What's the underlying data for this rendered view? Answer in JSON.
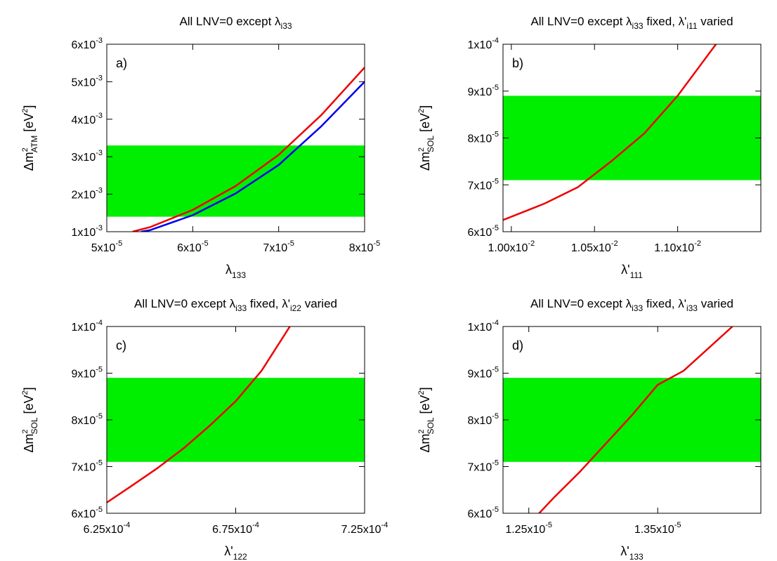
{
  "chart_data": [
    {
      "type": "line",
      "panel_label": "a)",
      "title": {
        "main": "All LNV=0 except λ",
        "sub": "i33",
        "tail": ""
      },
      "xlabel": {
        "main": "λ",
        "sub": "133",
        "sup": ""
      },
      "ylabel": {
        "pre": "Δm",
        "sup": "2",
        "sub": "ATM",
        "post": " [eV",
        "unit_sup": "2",
        "end": "]"
      },
      "xlim": [
        5e-05,
        8e-05
      ],
      "ylim": [
        0.001,
        0.006
      ],
      "xticks": [
        {
          "value": 5e-05,
          "mant": "5x10",
          "exp": "-5"
        },
        {
          "value": 6e-05,
          "mant": "6x10",
          "exp": "-5"
        },
        {
          "value": 7e-05,
          "mant": "7x10",
          "exp": "-5"
        },
        {
          "value": 8e-05,
          "mant": "8x10",
          "exp": "-5"
        }
      ],
      "yticks": [
        {
          "value": 0.001,
          "mant": "1x10",
          "exp": "-3"
        },
        {
          "value": 0.002,
          "mant": "2x10",
          "exp": "-3"
        },
        {
          "value": 0.003,
          "mant": "3x10",
          "exp": "-3"
        },
        {
          "value": 0.004,
          "mant": "4x10",
          "exp": "-3"
        },
        {
          "value": 0.005,
          "mant": "5x10",
          "exp": "-3"
        },
        {
          "value": 0.006,
          "mant": "6x10",
          "exp": "-3"
        }
      ],
      "band": {
        "y0": 0.0014,
        "y1": 0.0033,
        "color": "#00ee00"
      },
      "series": [
        {
          "color": "#0000ee",
          "x": [
            5.4e-05,
            5.5e-05,
            6e-05,
            6.5e-05,
            7e-05,
            7.5e-05,
            8e-05
          ],
          "y": [
            0.001,
            0.00104,
            0.00144,
            0.00202,
            0.00278,
            0.00382,
            0.005
          ]
        },
        {
          "color": "#ee0000",
          "x": [
            5.3e-05,
            5.5e-05,
            6e-05,
            6.5e-05,
            7e-05,
            7.5e-05,
            8e-05
          ],
          "y": [
            0.001,
            0.00112,
            0.00158,
            0.00222,
            0.00305,
            0.00412,
            0.00538
          ]
        }
      ],
      "grid": false
    },
    {
      "type": "line",
      "panel_label": "b)",
      "title": {
        "main": "All LNV=0 except λ",
        "sub": "i33",
        "tail": " fixed, λ'",
        "sub2": "i11",
        "tail2": " varied"
      },
      "xlabel": {
        "main": "λ'",
        "sub": "111",
        "sup": ""
      },
      "ylabel": {
        "pre": "Δm",
        "sup": "2",
        "sub": "SOL",
        "post": " [eV",
        "unit_sup": "2",
        "end": "]"
      },
      "xlim": [
        0.00995,
        0.0115
      ],
      "ylim": [
        6e-05,
        0.0001
      ],
      "xticks": [
        {
          "value": 0.01,
          "mant": "1.00x10",
          "exp": "-2"
        },
        {
          "value": 0.0105,
          "mant": "1.05x10",
          "exp": "-2"
        },
        {
          "value": 0.011,
          "mant": "1.10x10",
          "exp": "-2"
        }
      ],
      "yticks": [
        {
          "value": 6e-05,
          "mant": "6x10",
          "exp": "-5"
        },
        {
          "value": 7e-05,
          "mant": "7x10",
          "exp": "-5"
        },
        {
          "value": 8e-05,
          "mant": "8x10",
          "exp": "-5"
        },
        {
          "value": 9e-05,
          "mant": "9x10",
          "exp": "-5"
        },
        {
          "value": 0.0001,
          "mant": "1x10",
          "exp": "-4"
        }
      ],
      "band": {
        "y0": 7.1e-05,
        "y1": 8.9e-05,
        "color": "#00ee00"
      },
      "series": [
        {
          "color": "#ee0000",
          "x": [
            0.00995,
            0.0102,
            0.0104,
            0.0106,
            0.0108,
            0.011,
            0.01123
          ],
          "y": [
            6.25e-05,
            6.6e-05,
            6.95e-05,
            7.5e-05,
            8.1e-05,
            8.9e-05,
            0.0001
          ]
        }
      ],
      "grid": false
    },
    {
      "type": "line",
      "panel_label": "c)",
      "title": {
        "main": "All LNV=0 except λ",
        "sub": "i33",
        "tail": " fixed, λ'",
        "sub2": "i22",
        "tail2": " varied"
      },
      "xlabel": {
        "main": "λ'",
        "sub": "122",
        "sup": ""
      },
      "ylabel": {
        "pre": "Δm",
        "sup": "2",
        "sub": "SOL",
        "post": " [eV",
        "unit_sup": "2",
        "end": "]"
      },
      "xlim": [
        0.000625,
        0.000725
      ],
      "ylim": [
        6e-05,
        0.0001
      ],
      "xticks": [
        {
          "value": 0.000625,
          "mant": "6.25x10",
          "exp": "-4"
        },
        {
          "value": 0.000675,
          "mant": "6.75x10",
          "exp": "-4"
        },
        {
          "value": 0.000725,
          "mant": "7.25x10",
          "exp": "-4"
        }
      ],
      "yticks": [
        {
          "value": 6e-05,
          "mant": "6x10",
          "exp": "-5"
        },
        {
          "value": 7e-05,
          "mant": "7x10",
          "exp": "-5"
        },
        {
          "value": 8e-05,
          "mant": "8x10",
          "exp": "-5"
        },
        {
          "value": 9e-05,
          "mant": "9x10",
          "exp": "-5"
        },
        {
          "value": 0.0001,
          "mant": "1x10",
          "exp": "-4"
        }
      ],
      "band": {
        "y0": 7.1e-05,
        "y1": 8.9e-05,
        "color": "#00ee00"
      },
      "series": [
        {
          "color": "#ee0000",
          "x": [
            0.000625,
            0.000635,
            0.000645,
            0.000655,
            0.000665,
            0.000675,
            0.000685,
            0.000696
          ],
          "y": [
            6.23e-05,
            6.6e-05,
            6.98e-05,
            7.4e-05,
            7.88e-05,
            8.4e-05,
            9.05e-05,
            0.0001
          ]
        }
      ],
      "grid": false
    },
    {
      "type": "line",
      "panel_label": "d)",
      "title": {
        "main": "All LNV=0 except  λ",
        "sub": "i33",
        "tail": " fixed, λ'",
        "sub2": "i33",
        "tail2": " varied"
      },
      "xlabel": {
        "main": "λ'",
        "sub": "133",
        "sup": ""
      },
      "ylabel": {
        "pre": "Δm",
        "sup": "2",
        "sub": "SOL",
        "post": " [eV",
        "unit_sup": "2",
        "end": "]"
      },
      "xlim": [
        1.23e-05,
        1.43e-05
      ],
      "ylim": [
        6e-05,
        0.0001
      ],
      "xticks": [
        {
          "value": 1.25e-05,
          "mant": "1.25x10",
          "exp": "-5"
        },
        {
          "value": 1.35e-05,
          "mant": "1.35x10",
          "exp": "-5"
        }
      ],
      "yticks": [
        {
          "value": 6e-05,
          "mant": "6x10",
          "exp": "-5"
        },
        {
          "value": 7e-05,
          "mant": "7x10",
          "exp": "-5"
        },
        {
          "value": 8e-05,
          "mant": "8x10",
          "exp": "-5"
        },
        {
          "value": 9e-05,
          "mant": "9x10",
          "exp": "-5"
        },
        {
          "value": 0.0001,
          "mant": "1x10",
          "exp": "-4"
        }
      ],
      "band": {
        "y0": 7.1e-05,
        "y1": 8.9e-05,
        "color": "#00ee00"
      },
      "series": [
        {
          "color": "#ee0000",
          "x": [
            1.258e-05,
            1.27e-05,
            1.29e-05,
            1.31e-05,
            1.33e-05,
            1.35e-05,
            1.37e-05,
            1.39e-05,
            1.408e-05
          ],
          "y": [
            6e-05,
            6.35e-05,
            6.9e-05,
            7.5e-05,
            8.1e-05,
            8.75e-05,
            9.05e-05,
            9.55e-05,
            0.0001
          ]
        }
      ],
      "grid": false
    }
  ]
}
